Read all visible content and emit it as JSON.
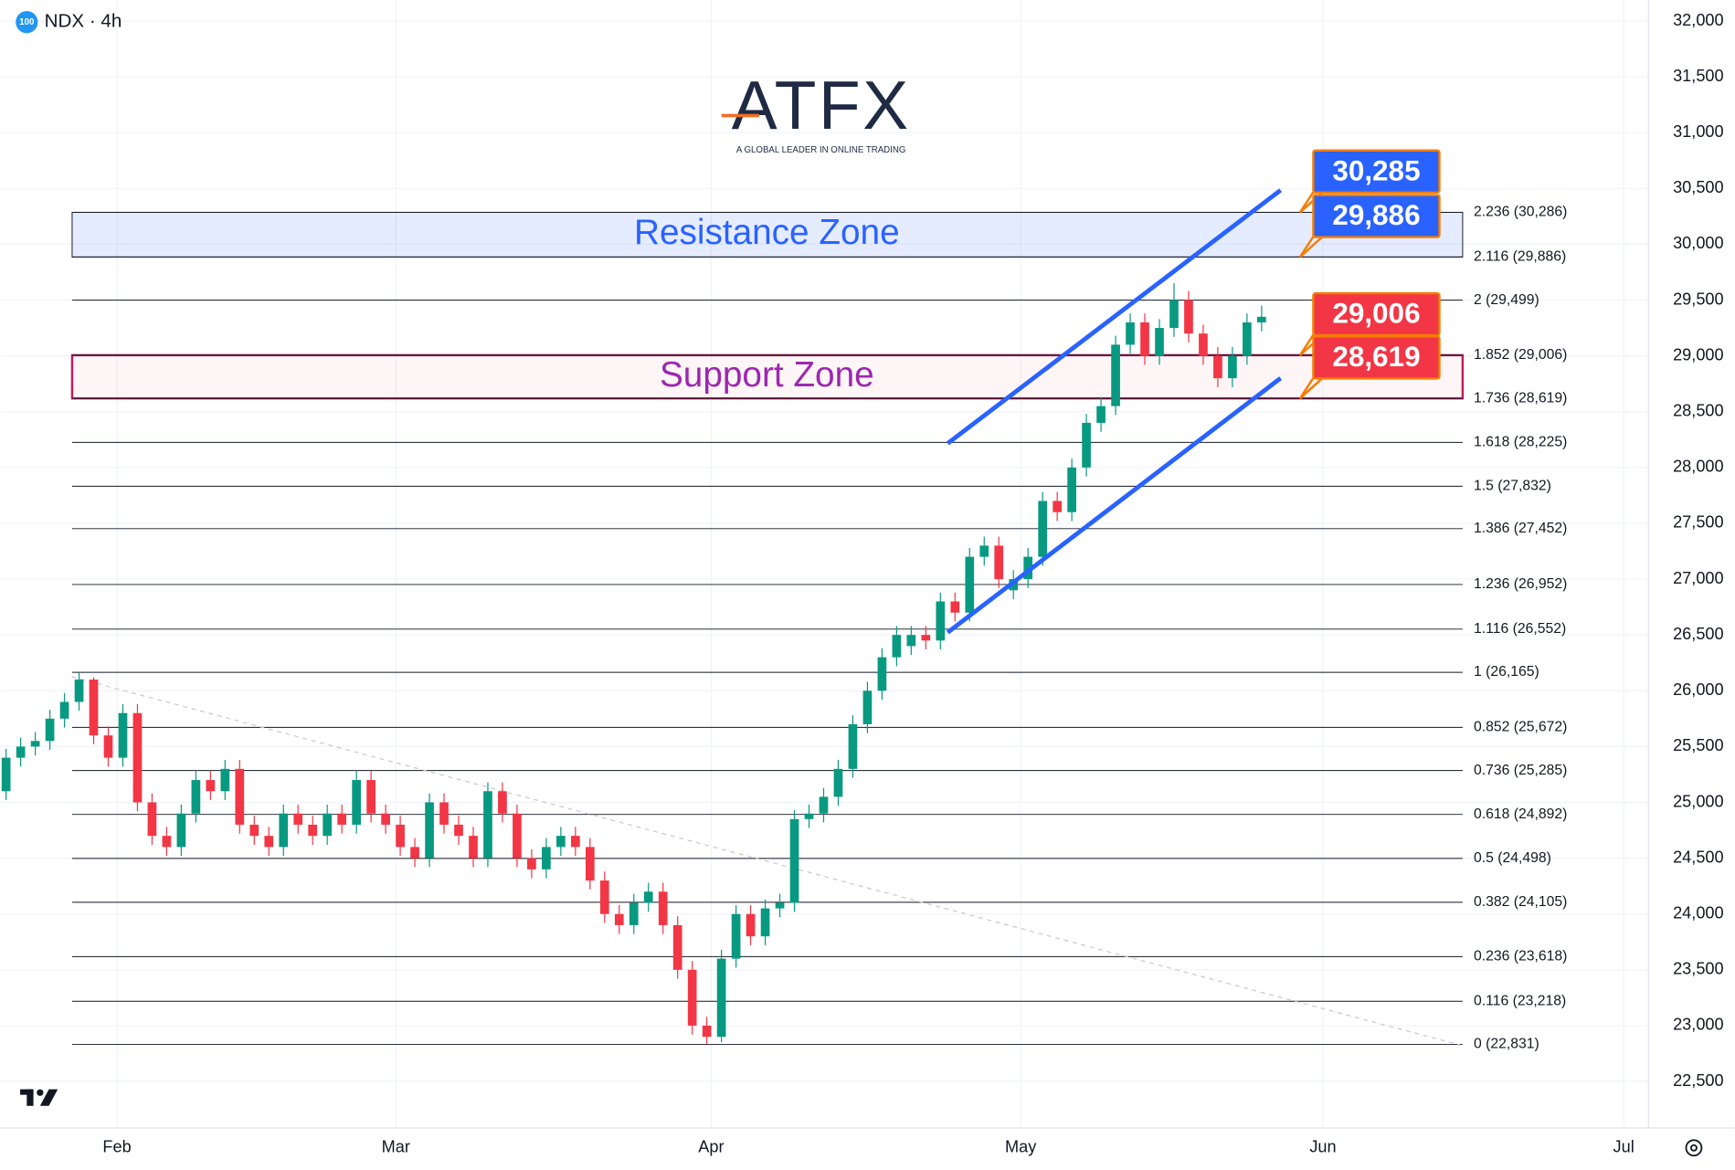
{
  "chart_data": {
    "type": "candlestick",
    "symbol": "NDX · 4h",
    "badge": "100",
    "logo": "ATFX",
    "logo_tagline": "A GLOBAL LEADER IN ONLINE TRADING",
    "up_color": "#089981",
    "down_color": "#f23645",
    "open": [
      25100,
      25400,
      25500,
      25550,
      25750,
      25900,
      26100,
      25600,
      25400,
      25800,
      25000,
      24700,
      24600,
      24900,
      25200,
      25100,
      25300,
      24800,
      24700,
      24600,
      24900,
      24800,
      24700,
      24900,
      24800,
      25200,
      24900,
      24800,
      24600,
      24500,
      25000,
      24800,
      24700,
      24500,
      25100,
      24900,
      24500,
      24400,
      24600,
      24700,
      24600,
      24300,
      24000,
      23900,
      24100,
      24200,
      23900,
      23500,
      23000,
      22900,
      23600,
      24000,
      23800,
      24050,
      24100,
      24850,
      24900,
      25050,
      25300,
      25700,
      26000,
      26300,
      26400,
      26500,
      26450,
      26800,
      26700,
      27200,
      27300,
      26900,
      27000,
      27200,
      27700,
      27600,
      28000,
      28400,
      28550,
      29100,
      29300,
      29000,
      29250,
      29500,
      29200,
      29000,
      28800,
      29000,
      29300
    ],
    "high": [
      25480,
      25580,
      25630,
      25830,
      25980,
      26165,
      26120,
      25680,
      25880,
      25880,
      25080,
      24780,
      24980,
      25280,
      25280,
      25380,
      25380,
      24880,
      24780,
      24980,
      24980,
      24880,
      24980,
      24980,
      25280,
      25280,
      24980,
      24880,
      24680,
      25080,
      25080,
      24880,
      24780,
      25180,
      25180,
      24980,
      24580,
      24680,
      24780,
      24780,
      24680,
      24380,
      24080,
      24180,
      24280,
      24280,
      23980,
      23580,
      23080,
      23680,
      24080,
      24080,
      24130,
      24180,
      24930,
      24980,
      25130,
      25380,
      25780,
      26080,
      26380,
      26580,
      26580,
      26580,
      26880,
      26880,
      27280,
      27380,
      27380,
      27080,
      27280,
      27780,
      27780,
      28080,
      28480,
      28630,
      29180,
      29380,
      29380,
      29330,
      29650,
      29580,
      29280,
      29080,
      29080,
      29380,
      29450
    ],
    "low": [
      25020,
      25320,
      25420,
      25470,
      25670,
      25820,
      25520,
      25320,
      25320,
      24920,
      24620,
      24520,
      24520,
      24820,
      25020,
      25020,
      24720,
      24620,
      24520,
      24520,
      24720,
      24620,
      24620,
      24720,
      24720,
      24820,
      24720,
      24520,
      24420,
      24420,
      24720,
      24620,
      24420,
      24420,
      24820,
      24420,
      24320,
      24320,
      24520,
      24520,
      24220,
      23920,
      23820,
      23820,
      24020,
      23820,
      23420,
      22920,
      22831,
      22850,
      23520,
      23720,
      23720,
      23970,
      24020,
      24770,
      24820,
      24970,
      25220,
      25620,
      25920,
      26220,
      26320,
      26370,
      26370,
      26620,
      26620,
      27120,
      26920,
      26820,
      26920,
      27120,
      27520,
      27520,
      27920,
      28320,
      28470,
      29020,
      28920,
      28920,
      29170,
      29120,
      28920,
      28720,
      28720,
      28920,
      29220
    ],
    "close": [
      25400,
      25500,
      25550,
      25750,
      25900,
      26100,
      25600,
      25400,
      25800,
      25000,
      24700,
      24600,
      24900,
      25200,
      25100,
      25300,
      24800,
      24700,
      24600,
      24900,
      24800,
      24700,
      24900,
      24800,
      25200,
      24900,
      24800,
      24600,
      24500,
      25000,
      24800,
      24700,
      24500,
      25100,
      24900,
      24500,
      24400,
      24600,
      24700,
      24600,
      24300,
      24000,
      23900,
      24100,
      24200,
      23900,
      23500,
      23000,
      22900,
      23600,
      24000,
      23800,
      24050,
      24100,
      24850,
      24900,
      25050,
      25300,
      25700,
      26000,
      26300,
      26500,
      26500,
      26450,
      26800,
      26700,
      27200,
      27300,
      27000,
      27000,
      27200,
      27700,
      27600,
      28000,
      28400,
      28550,
      29100,
      29300,
      29000,
      29250,
      29500,
      29200,
      29000,
      28800,
      29000,
      29300,
      29350
    ],
    "xlim": [
      -0.4,
      112.5
    ],
    "xticks": [
      {
        "value": 7.6,
        "label": "Feb"
      },
      {
        "value": 26.7,
        "label": "Mar"
      },
      {
        "value": 48.3,
        "label": "Apr"
      },
      {
        "value": 69.5,
        "label": "May"
      },
      {
        "value": 90.2,
        "label": "Jun"
      },
      {
        "value": 110.8,
        "label": "Jul"
      }
    ],
    "ylim": [
      22083,
      32188
    ],
    "yticks": [
      {
        "value": 22500,
        "label": "22,500"
      },
      {
        "value": 23000,
        "label": "23,000"
      },
      {
        "value": 23500,
        "label": "23,500"
      },
      {
        "value": 24000,
        "label": "24,000"
      },
      {
        "value": 24500,
        "label": "24,500"
      },
      {
        "value": 25000,
        "label": "25,000"
      },
      {
        "value": 25500,
        "label": "25,500"
      },
      {
        "value": 26000,
        "label": "26,000"
      },
      {
        "value": 26500,
        "label": "26,500"
      },
      {
        "value": 27000,
        "label": "27,000"
      },
      {
        "value": 27500,
        "label": "27,500"
      },
      {
        "value": 28000,
        "label": "28,000"
      },
      {
        "value": 28500,
        "label": "28,500"
      },
      {
        "value": 29000,
        "label": "29,000"
      },
      {
        "value": 29500,
        "label": "29,500"
      },
      {
        "value": 30000,
        "label": "30,000"
      },
      {
        "value": 30500,
        "label": "30,500"
      },
      {
        "value": 31000,
        "label": "31,000"
      },
      {
        "value": 31500,
        "label": "31,500"
      },
      {
        "value": 32000,
        "label": "32,000"
      }
    ],
    "grid": true,
    "fib_levels": [
      {
        "value": 30286,
        "label": "2.236 (30,286)"
      },
      {
        "value": 29886,
        "label": "2.116 (29,886)"
      },
      {
        "value": 29499,
        "label": "2 (29,499)"
      },
      {
        "value": 29006,
        "label": "1.852 (29,006)"
      },
      {
        "value": 28619,
        "label": "1.736 (28,619)"
      },
      {
        "value": 28225,
        "label": "1.618 (28,225)"
      },
      {
        "value": 27832,
        "label": "1.5 (27,832)"
      },
      {
        "value": 27452,
        "label": "1.386 (27,452)"
      },
      {
        "value": 26952,
        "label": "1.236 (26,952)"
      },
      {
        "value": 26552,
        "label": "1.116 (26,552)"
      },
      {
        "value": 26165,
        "label": "1 (26,165)"
      },
      {
        "value": 25672,
        "label": "0.852 (25,672)"
      },
      {
        "value": 25285,
        "label": "0.736 (25,285)"
      },
      {
        "value": 24892,
        "label": "0.618 (24,892)"
      },
      {
        "value": 24498,
        "label": "0.5 (24,498)"
      },
      {
        "value": 24105,
        "label": "0.382 (24,105)"
      },
      {
        "value": 23618,
        "label": "0.236 (23,618)"
      },
      {
        "value": 23218,
        "label": "0.116 (23,218)"
      },
      {
        "value": 22831,
        "label": "0 (22,831)"
      }
    ],
    "zones": [
      {
        "name": "Resistance Zone",
        "low": 29886,
        "high": 30286,
        "color": "#2962ff"
      },
      {
        "name": "Support Zone",
        "low": 28619,
        "high": 29006,
        "color": "#9c27b0"
      }
    ],
    "price_labels": [
      {
        "value": 30285,
        "label": "30,285",
        "color": "#2962ff"
      },
      {
        "value": 29886,
        "label": "29,886",
        "color": "#2962ff"
      },
      {
        "value": 29006,
        "label": "29,006",
        "color": "#f23645"
      },
      {
        "value": 28619,
        "label": "28,619",
        "color": "#f23645"
      }
    ],
    "channel": [
      {
        "x": [
          64.5,
          87.3
        ],
        "y": [
          28216,
          30484
        ]
      },
      {
        "x": [
          64.5,
          87.3
        ],
        "y": [
          26522,
          28800
        ]
      }
    ],
    "trendline": {
      "x": [
        4.5,
        99.6
      ],
      "y": [
        26125,
        22826
      ]
    }
  }
}
